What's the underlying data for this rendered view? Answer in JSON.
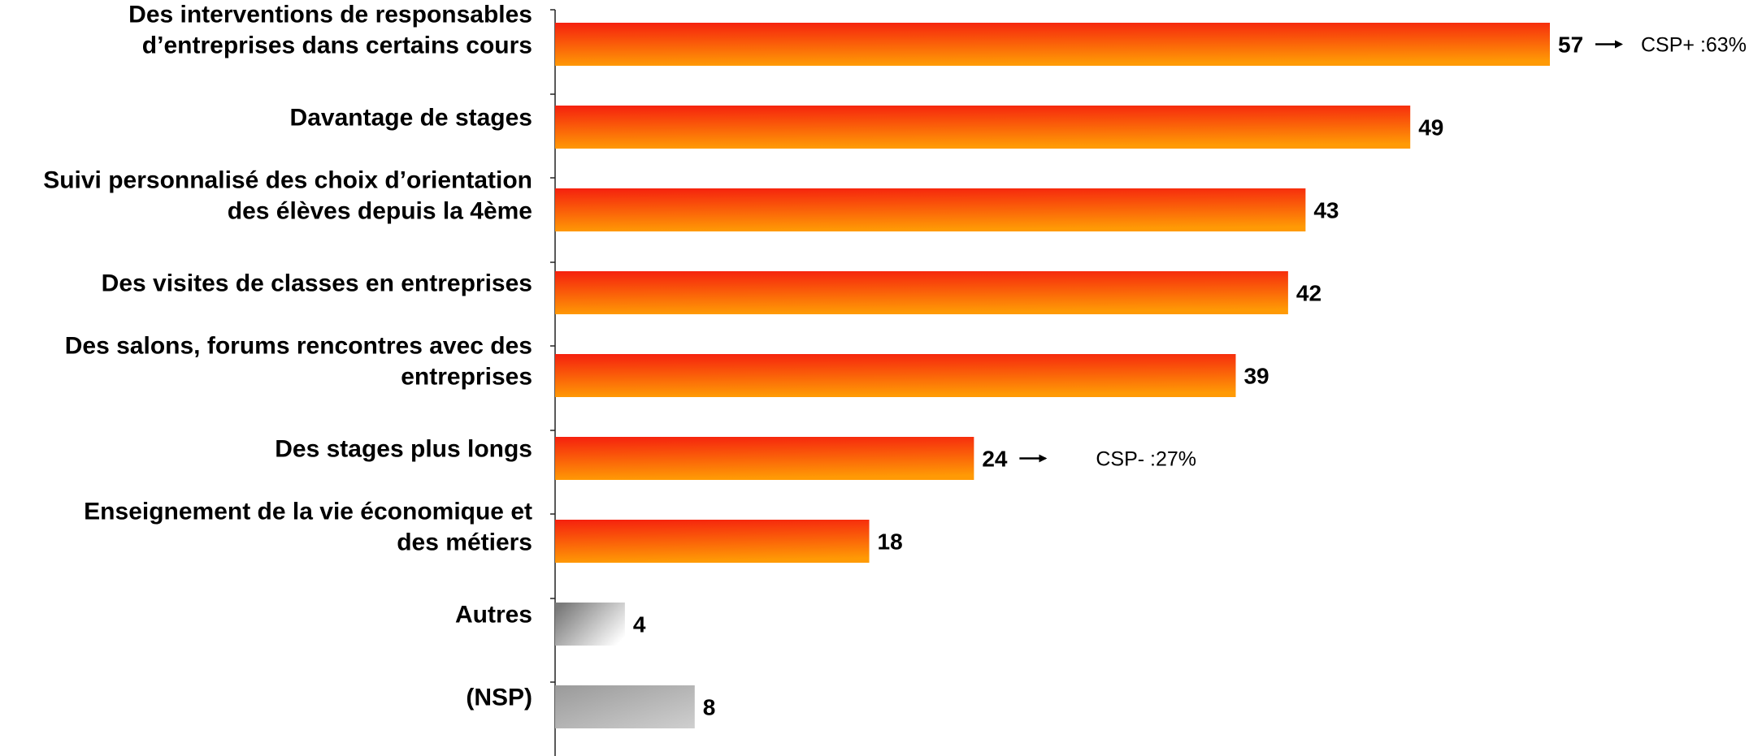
{
  "chart_data": {
    "type": "bar",
    "orientation": "horizontal",
    "title": "",
    "xlabel": "",
    "ylabel": "",
    "xlim": [
      0,
      57
    ],
    "grid": false,
    "legend": "none",
    "categories": [
      [
        "Des interventions de responsables",
        "d’entreprises dans certains cours"
      ],
      [
        "Davantage de stages"
      ],
      [
        "Suivi personnalisé des choix d’orientation",
        "des élèves depuis la 4ème"
      ],
      [
        "Des visites de classes en entreprises"
      ],
      [
        "Des salons, forums rencontres avec des",
        "entreprises"
      ],
      [
        "Des stages plus longs"
      ],
      [
        "Enseignement de la vie économique et",
        "des métiers"
      ],
      [
        "Autres"
      ],
      [
        "(NSP)"
      ]
    ],
    "values": [
      57,
      49,
      43,
      42,
      39,
      24,
      18,
      4,
      8
    ],
    "bar_style": [
      "orange",
      "orange",
      "orange",
      "orange",
      "orange",
      "orange",
      "orange",
      "grey-fade",
      "grey"
    ],
    "annotations": [
      {
        "category_index": 0,
        "text": "CSP+ :63%"
      },
      {
        "category_index": 5,
        "text": "CSP- :27%"
      }
    ],
    "colors": {
      "orange_start": "#f5200e",
      "orange_end": "#ff9a05",
      "grey_start": "#8c8c8c",
      "grey_end": "#d2d2d2",
      "axis": "#222222"
    }
  }
}
